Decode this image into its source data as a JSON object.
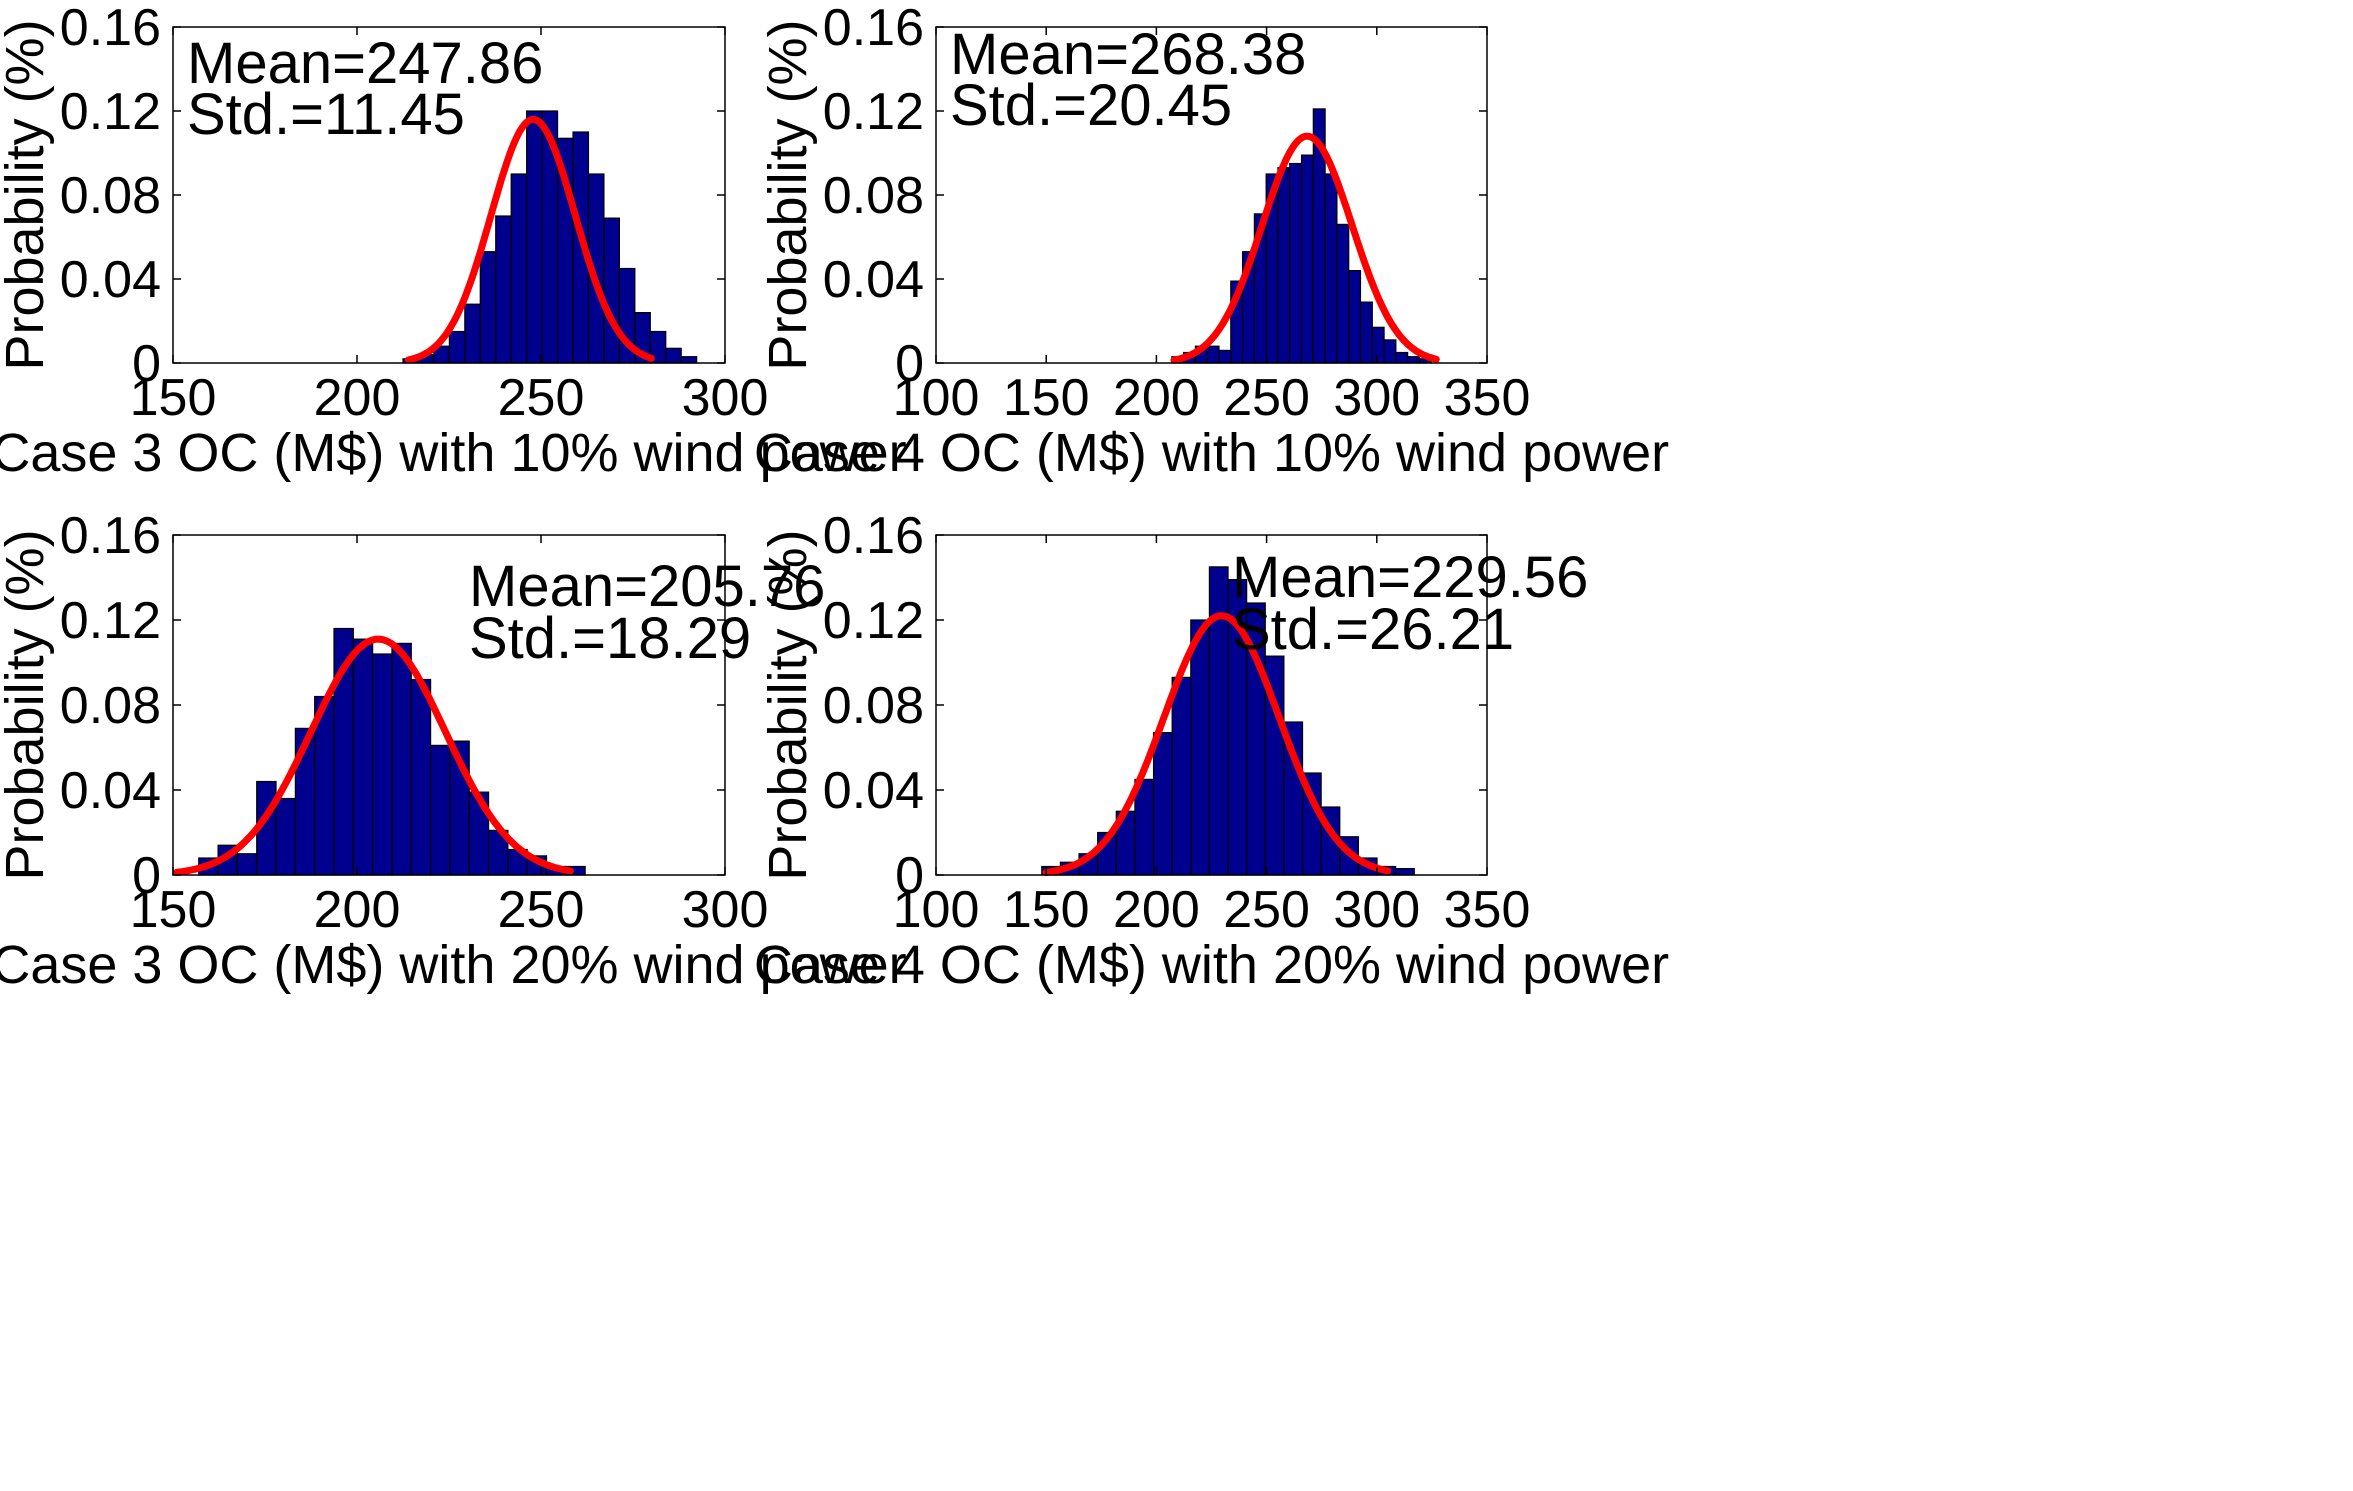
{
  "figure": {
    "panel_count": 4
  },
  "colors": {
    "bar_fill": "#00008f",
    "bar_edge": "#000000",
    "fit_line": "#ff0000",
    "axes": "#000000",
    "background": "#ffffff"
  },
  "chart_data": [
    {
      "type": "bar",
      "title": "",
      "xlabel": "Case 3 OC (M$) with 10% wind power",
      "ylabel": "Probability (%)",
      "xlim": [
        150,
        300
      ],
      "ylim": [
        0,
        0.16
      ],
      "xticks": [
        "150",
        "200",
        "250",
        "300"
      ],
      "yticks": [
        "0",
        "0.04",
        "0.08",
        "0.12",
        "0.16"
      ],
      "annotation": [
        "Mean=247.86",
        "Std.=11.45"
      ],
      "annotation_pos": "top-left",
      "bin_start": 212.5,
      "bin_width": 4.2,
      "values": [
        0.002,
        0.004,
        0.008,
        0.015,
        0.028,
        0.053,
        0.07,
        0.09,
        0.12,
        0.12,
        0.107,
        0.11,
        0.09,
        0.069,
        0.045,
        0.024,
        0.015,
        0.007,
        0.003
      ],
      "series": [
        {
          "name": "Normal fit",
          "type": "line",
          "mean": 247.86,
          "std": 11.45,
          "peak": 0.116,
          "x_range": [
            214,
            280
          ]
        }
      ]
    },
    {
      "type": "bar",
      "title": "",
      "xlabel": "Case 4 OC (M$) with 10% wind power",
      "ylabel": "Probability (%)",
      "xlim": [
        100,
        350
      ],
      "ylim": [
        0,
        0.16
      ],
      "xticks": [
        "100",
        "150",
        "200",
        "250",
        "300",
        "350"
      ],
      "yticks": [
        "0",
        "0.04",
        "0.08",
        "0.12",
        "0.16"
      ],
      "annotation": [
        "Mean=268.38",
        "Std.=20.45"
      ],
      "annotation_pos": "top-left",
      "bin_start": 207,
      "bin_width": 5.35,
      "values": [
        0.003,
        0.005,
        0.008,
        0.008,
        0.006,
        0.039,
        0.053,
        0.071,
        0.09,
        0.093,
        0.095,
        0.099,
        0.121,
        0.09,
        0.066,
        0.044,
        0.029,
        0.017,
        0.011,
        0.005,
        0.003,
        0.002
      ],
      "series": [
        {
          "name": "Normal fit",
          "type": "line",
          "mean": 268.38,
          "std": 20.45,
          "peak": 0.108,
          "x_range": [
            208,
            327
          ]
        }
      ]
    },
    {
      "type": "bar",
      "title": "",
      "xlabel": "Case 3 OC (M$) with 20% wind power",
      "ylabel": "Probability (%)",
      "xlim": [
        150,
        300
      ],
      "ylim": [
        0,
        0.16
      ],
      "xticks": [
        "150",
        "200",
        "250",
        "300"
      ],
      "yticks": [
        "0",
        "0.04",
        "0.08",
        "0.12",
        "0.16"
      ],
      "annotation": [
        "Mean=205.76",
        "Std.=18.29"
      ],
      "annotation_pos": "top-right",
      "bin_start": 157,
      "bin_width": 5.25,
      "values": [
        0.008,
        0.014,
        0.01,
        0.044,
        0.036,
        0.069,
        0.084,
        0.116,
        0.111,
        0.104,
        0.109,
        0.092,
        0.061,
        0.063,
        0.039,
        0.021,
        0.012,
        0.009,
        0.004,
        0.004
      ],
      "series": [
        {
          "name": "Normal fit",
          "type": "line",
          "mean": 205.76,
          "std": 18.29,
          "peak": 0.111,
          "x_range": [
            151,
            258
          ]
        }
      ]
    },
    {
      "type": "bar",
      "title": "",
      "xlabel": "Case 4 OC (M$) with 20% wind power",
      "ylabel": "Probability (%)",
      "xlim": [
        100,
        350
      ],
      "ylim": [
        0,
        0.16
      ],
      "xticks": [
        "100",
        "150",
        "200",
        "250",
        "300",
        "350"
      ],
      "yticks": [
        "0",
        "0.04",
        "0.08",
        "0.12",
        "0.16"
      ],
      "annotation": [
        "Mean=229.56",
        "Std.=26.21"
      ],
      "annotation_pos": "top-right",
      "bin_start": 148,
      "bin_width": 8.45,
      "values": [
        0.004,
        0.006,
        0.01,
        0.02,
        0.03,
        0.045,
        0.067,
        0.093,
        0.12,
        0.145,
        0.139,
        0.128,
        0.103,
        0.072,
        0.048,
        0.032,
        0.018,
        0.008,
        0.004,
        0.003
      ],
      "series": [
        {
          "name": "Normal fit",
          "type": "line",
          "mean": 229.56,
          "std": 26.21,
          "peak": 0.122,
          "x_range": [
            150,
            305
          ]
        }
      ]
    }
  ]
}
